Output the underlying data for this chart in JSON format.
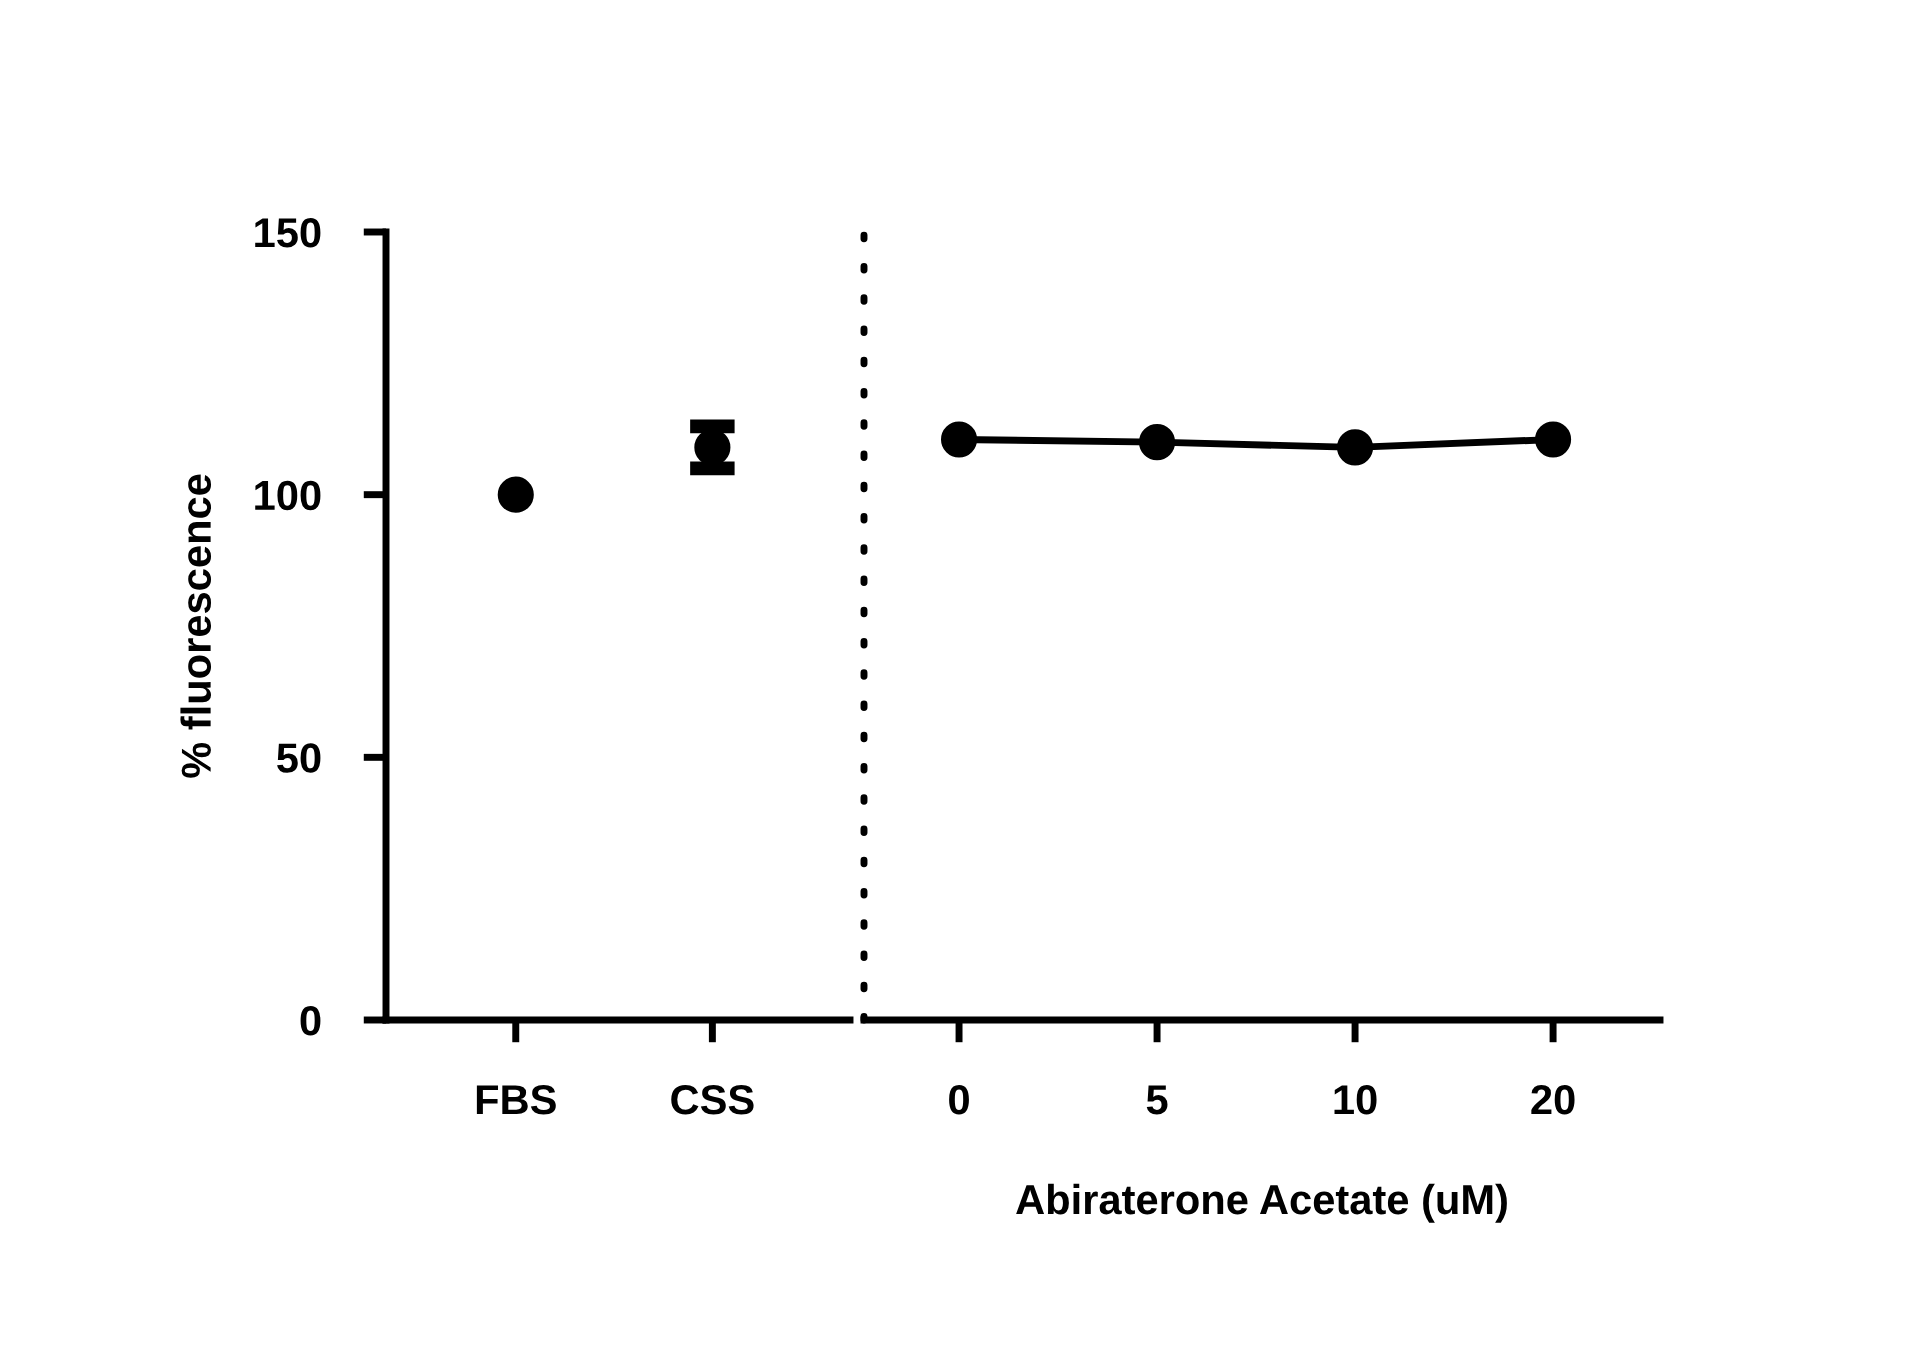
{
  "chart_data": [
    {
      "type": "scatter",
      "ylabel": "% fluorescence",
      "categories": [
        "FBS",
        "CSS"
      ],
      "ylim": [
        0,
        150
      ],
      "yticks": [
        0,
        50,
        100,
        150
      ],
      "marker": "circle",
      "grid": false,
      "legend": false,
      "series": [
        {
          "color": "#000000",
          "values": [
            100,
            109
          ],
          "errors": [
            null,
            4
          ]
        }
      ]
    },
    {
      "type": "line",
      "xlabel": "Abiraterone Acetate (uM)",
      "categories": [
        "0",
        "5",
        "10",
        "20"
      ],
      "ylim": [
        0,
        150
      ],
      "tick_labels": "x",
      "marker": "circle",
      "line_style": "solid",
      "grid": false,
      "legend": false,
      "series": [
        {
          "color": "#000000",
          "values": [
            110.5,
            110,
            109,
            110.5
          ]
        }
      ]
    }
  ]
}
